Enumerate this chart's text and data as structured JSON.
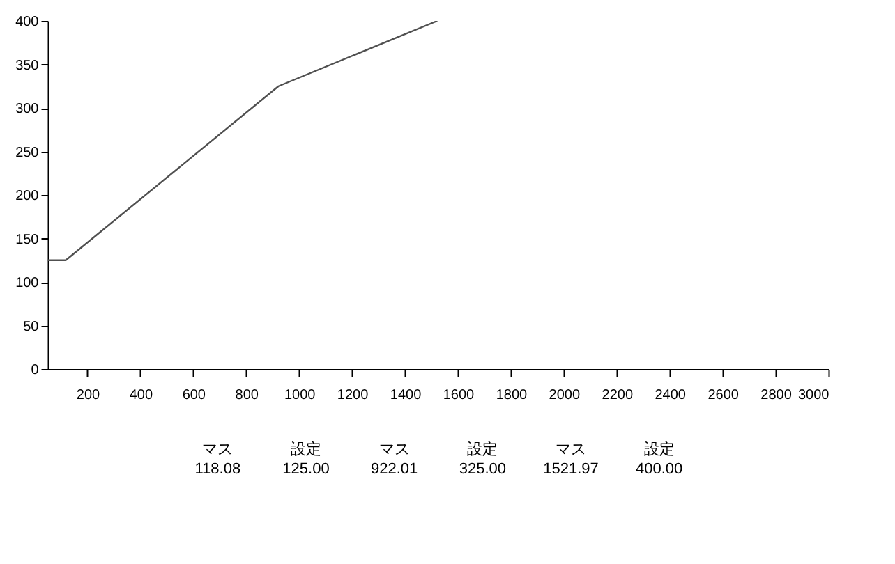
{
  "chart_data": {
    "type": "line",
    "x": [
      50,
      118.08,
      922.01,
      1521.97
    ],
    "series": [
      {
        "color": "#505050",
        "values": [
          125,
          125,
          325,
          400
        ]
      }
    ],
    "xlim": [
      50,
      3000
    ],
    "xticks": [
      200,
      400,
      600,
      800,
      1000,
      1200,
      1400,
      1600,
      1800,
      2000,
      2200,
      2400,
      2600,
      2800,
      3000
    ],
    "ylim": [
      0,
      400
    ],
    "yticks": [
      0,
      50,
      100,
      150,
      200,
      250,
      300,
      350,
      400
    ],
    "grid": false,
    "legend": false,
    "marker": "none",
    "line_style": "solid",
    "annotations": [
      "マス\n118.08",
      "設定\n125.00",
      "マス\n922.01",
      "設定\n325.00",
      "マス\n1521.97",
      "設定\n400.00"
    ]
  }
}
